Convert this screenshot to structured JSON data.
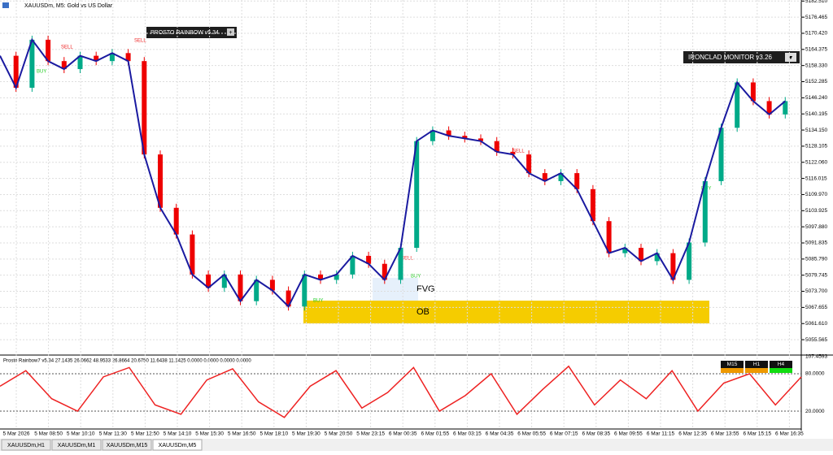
{
  "window": {
    "title": "XAUUSDm, M5:  Gold vs US Dollar"
  },
  "panels": {
    "rainbow": "PROSTO RAINBOW v5.34",
    "rainbow_button": "+",
    "monitor": "IRONCLAD MONITOR v3.26",
    "monitor_button": "▼"
  },
  "zones": {
    "fvg": "FVG",
    "ob": "OB"
  },
  "signals": [
    "BUY",
    "SELL",
    "SELL",
    "BUY",
    "SELL",
    "BUY",
    "SELL",
    "BUY"
  ],
  "price_axis": {
    "ylim": [
      5049.8,
      5182.9
    ],
    "ticks": [
      {
        "value": 5182.51,
        "label": "5182.510"
      },
      {
        "value": 5176.465,
        "label": "5176.465"
      },
      {
        "value": 5170.42,
        "label": "5170.420"
      },
      {
        "value": 5164.375,
        "label": "5164.375"
      },
      {
        "value": 5158.33,
        "label": "5158.330"
      },
      {
        "value": 5152.285,
        "label": "5152.285"
      },
      {
        "value": 5146.24,
        "label": "5146.240"
      },
      {
        "value": 5140.195,
        "label": "5140.195"
      },
      {
        "value": 5134.15,
        "label": "5134.150"
      },
      {
        "value": 5128.105,
        "label": "5128.105"
      },
      {
        "value": 5122.06,
        "label": "5122.060"
      },
      {
        "value": 5116.015,
        "label": "5116.015"
      },
      {
        "value": 5109.97,
        "label": "5109.970"
      },
      {
        "value": 5103.925,
        "label": "5103.925"
      },
      {
        "value": 5097.88,
        "label": "5097.880"
      },
      {
        "value": 5091.835,
        "label": "5091.835"
      },
      {
        "value": 5085.79,
        "label": "5085.790"
      },
      {
        "value": 5079.745,
        "label": "5079.745"
      },
      {
        "value": 5073.7,
        "label": "5073.700"
      },
      {
        "value": 5067.655,
        "label": "5067.655"
      },
      {
        "value": 5061.61,
        "label": "5061.610"
      },
      {
        "value": 5055.565,
        "label": "5055.565"
      }
    ]
  },
  "time_axis": [
    "5 Mar 2026",
    "5 Mar 08:50",
    "5 Mar 10:10",
    "5 Mar 11:30",
    "5 Mar 12:50",
    "5 Mar 14:10",
    "5 Mar 15:30",
    "5 Mar 16:50",
    "5 Mar 18:10",
    "5 Mar 19:30",
    "5 Mar 20:50",
    "5 Mar 23:15",
    "6 Mar 00:35",
    "6 Mar 01:55",
    "6 Mar 03:15",
    "6 Mar 04:35",
    "6 Mar 05:55",
    "6 Mar 07:15",
    "6 Mar 08:35",
    "6 Mar 09:55",
    "6 Mar 11:15",
    "6 Mar 12:35",
    "6 Mar 13:55",
    "6 Mar 15:15",
    "6 Mar 16:35"
  ],
  "price": {
    "values": [
      5162,
      5150,
      5168,
      5160,
      5157,
      5162,
      5160,
      5163,
      5160,
      5125,
      5105,
      5095,
      5080,
      5075,
      5080,
      5070,
      5078,
      5074,
      5068,
      5080,
      5078,
      5080,
      5087,
      5084,
      5078,
      5090,
      5130,
      5134,
      5132,
      5131,
      5130,
      5126,
      5125,
      5118,
      5115,
      5118,
      5112,
      5100,
      5088,
      5090,
      5085,
      5088,
      5078,
      5092,
      5115,
      5135,
      5152,
      5145,
      5140,
      5145
    ]
  },
  "oscillator": {
    "header": "Prosto Rainbow7 v5.34 27.1435 26.0662 48.9533 26.8664 20.6750 11.6438 11.1425 0.0000 0.0000 0.0000 0.0000",
    "ylim": [
      -8.6,
      108.7
    ],
    "ticks": [
      {
        "value": 107.4593,
        "label": "107.4593"
      },
      {
        "value": 80,
        "label": "80.0000"
      },
      {
        "value": 20,
        "label": "20.0000"
      }
    ],
    "values": [
      60,
      85,
      40,
      20,
      75,
      90,
      30,
      15,
      70,
      88,
      35,
      10,
      60,
      85,
      25,
      50,
      90,
      20,
      45,
      80,
      15,
      55,
      92,
      30,
      70,
      40,
      85,
      20,
      65,
      80,
      30,
      75
    ],
    "timeframes": [
      "M15",
      "H1",
      "H4"
    ]
  },
  "tabs": [
    "XAUUSDm,H1",
    "XAUUSDm,M1",
    "XAUUSDm,M15",
    "XAUUSDm,M5"
  ]
}
